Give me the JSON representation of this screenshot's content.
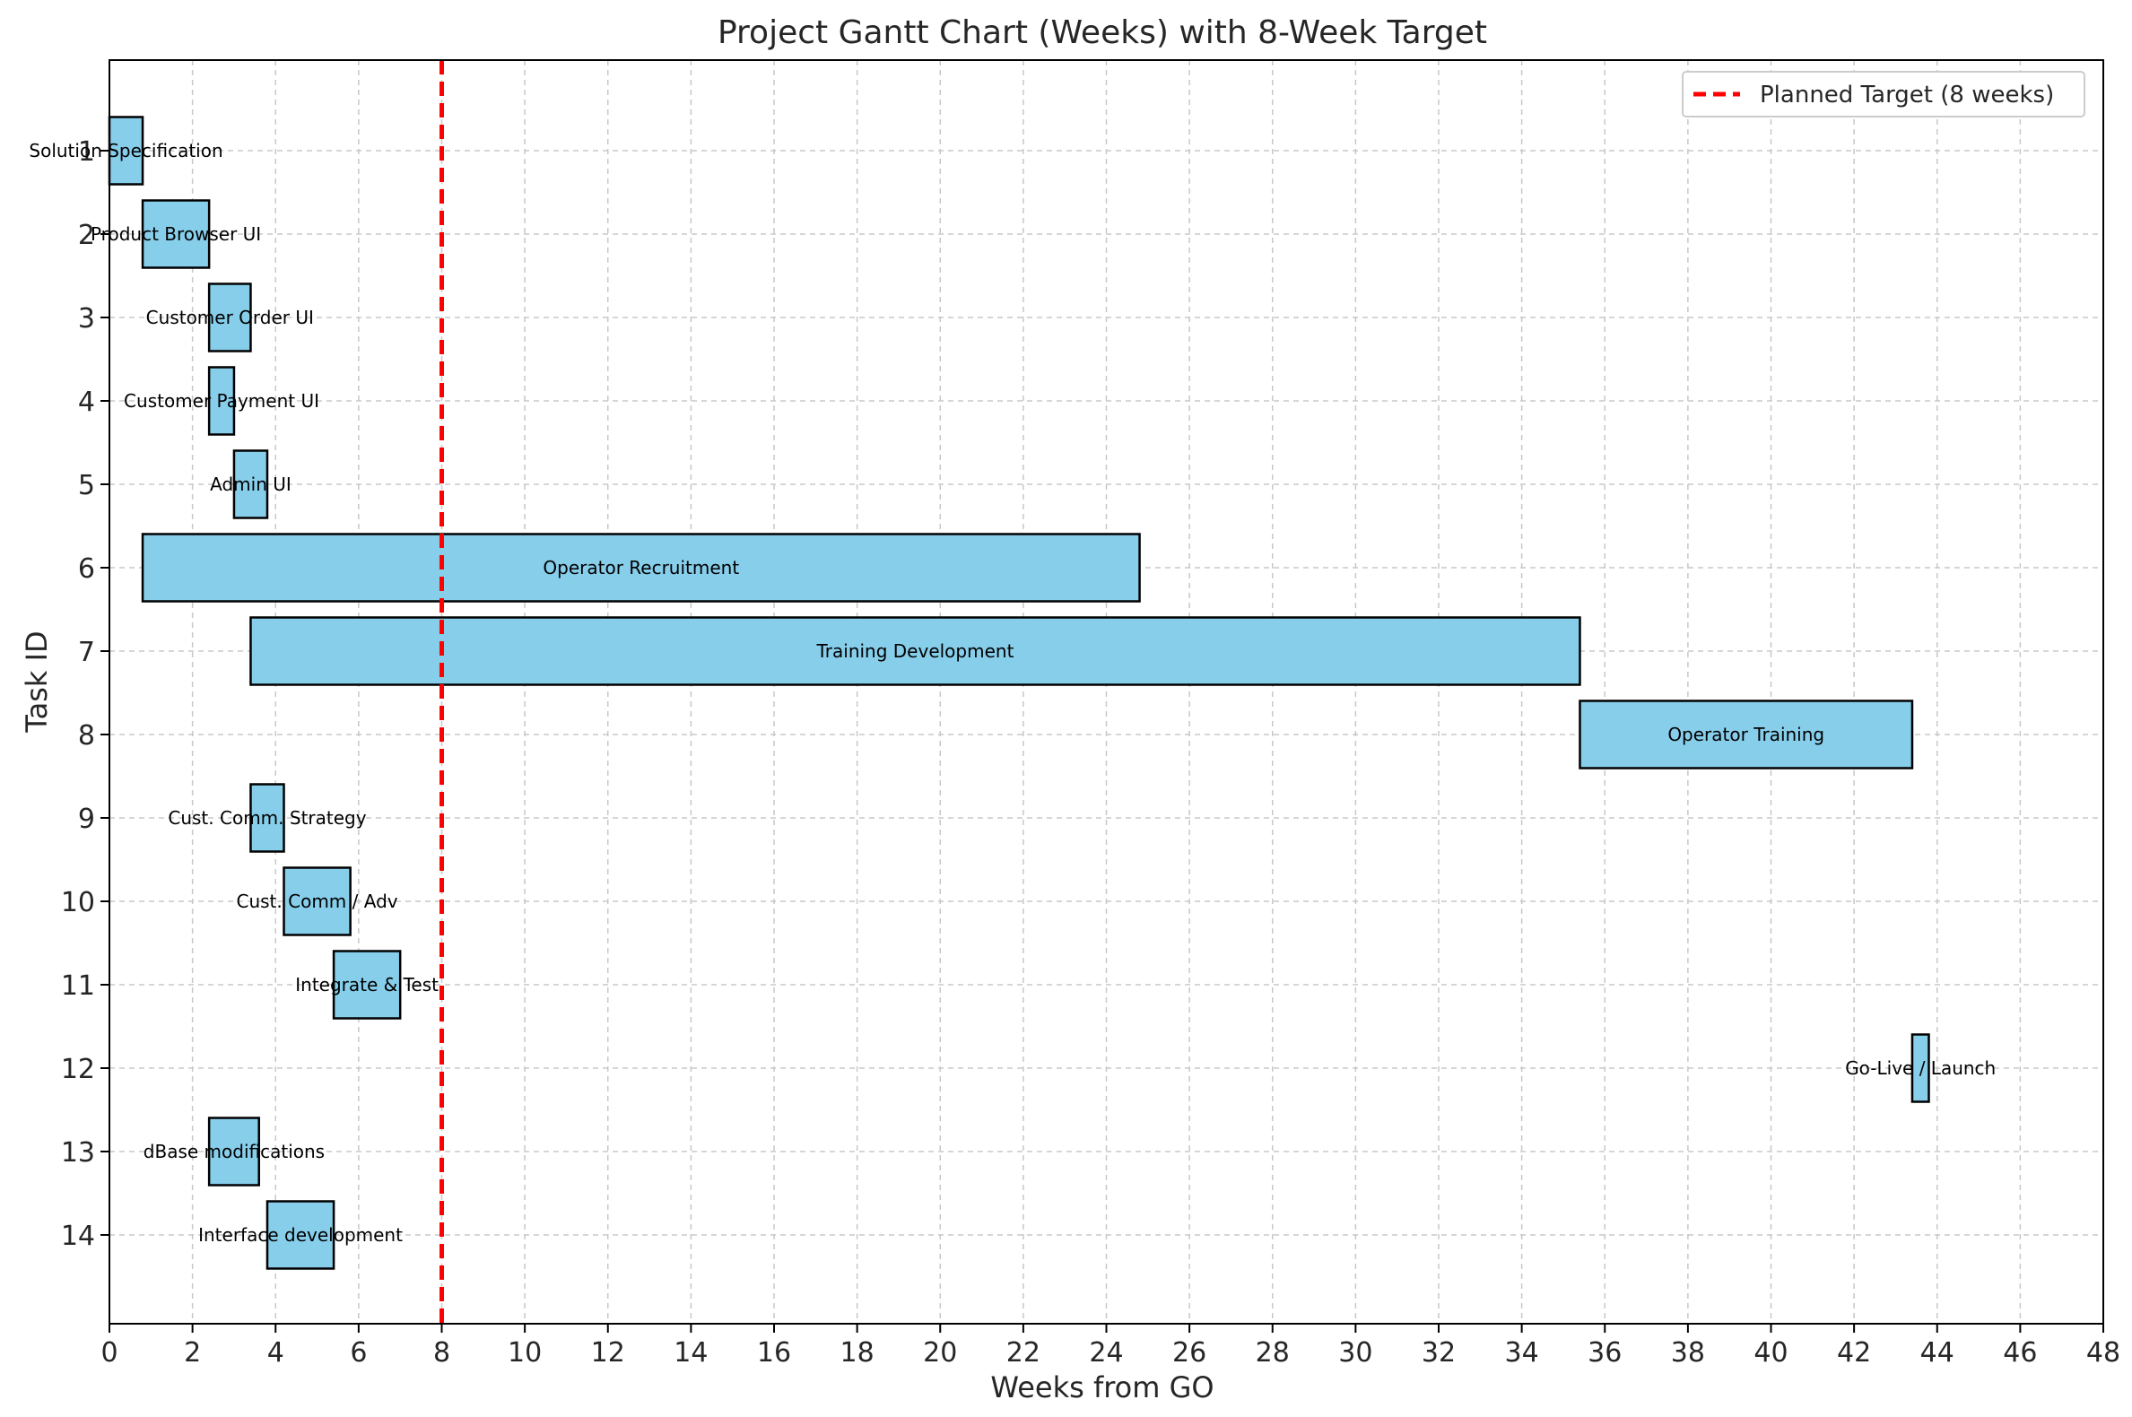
{
  "chart_data": {
    "type": "bar",
    "orientation": "horizontal",
    "title": "Project Gantt Chart (Weeks) with 8-Week Target",
    "xlabel": "Weeks from GO",
    "ylabel": "Task ID",
    "xlim": [
      0,
      48
    ],
    "x_ticks": [
      0,
      2,
      4,
      6,
      8,
      10,
      12,
      14,
      16,
      18,
      20,
      22,
      24,
      26,
      28,
      30,
      32,
      34,
      36,
      38,
      40,
      42,
      44,
      46,
      48
    ],
    "grid": true,
    "legend": {
      "position": "top-right",
      "entries": [
        "Planned Target (8 weeks)"
      ]
    },
    "target_line": {
      "x": 8,
      "label": "Planned Target (8 weeks)",
      "color": "#ff0000",
      "style": "dashed"
    },
    "bar_color": "#87ceeb",
    "bar_edge_color": "#000000",
    "tasks": [
      {
        "id": "1",
        "name": "Solution Specification",
        "start": 0.0,
        "end": 0.8
      },
      {
        "id": "2",
        "name": "Product Browser UI",
        "start": 0.8,
        "end": 2.4
      },
      {
        "id": "3",
        "name": "Customer Order UI",
        "start": 2.4,
        "end": 3.4
      },
      {
        "id": "4",
        "name": "Customer Payment UI",
        "start": 2.4,
        "end": 3.0
      },
      {
        "id": "5",
        "name": "Admin UI",
        "start": 3.0,
        "end": 3.8
      },
      {
        "id": "6",
        "name": "Operator Recruitment",
        "start": 0.8,
        "end": 24.8
      },
      {
        "id": "7",
        "name": "Training Development",
        "start": 3.4,
        "end": 35.4
      },
      {
        "id": "8",
        "name": "Operator Training",
        "start": 35.4,
        "end": 43.4
      },
      {
        "id": "9",
        "name": "Cust. Comm. Strategy",
        "start": 3.4,
        "end": 4.2
      },
      {
        "id": "10",
        "name": "Cust. Comm / Adv",
        "start": 4.2,
        "end": 5.8
      },
      {
        "id": "11",
        "name": "Integrate & Test",
        "start": 5.4,
        "end": 7.0
      },
      {
        "id": "12",
        "name": "Go-Live / Launch",
        "start": 43.4,
        "end": 43.8
      },
      {
        "id": "13",
        "name": "dBase modifications",
        "start": 2.4,
        "end": 3.6
      },
      {
        "id": "14",
        "name": "Interface development",
        "start": 3.8,
        "end": 5.4
      }
    ]
  }
}
